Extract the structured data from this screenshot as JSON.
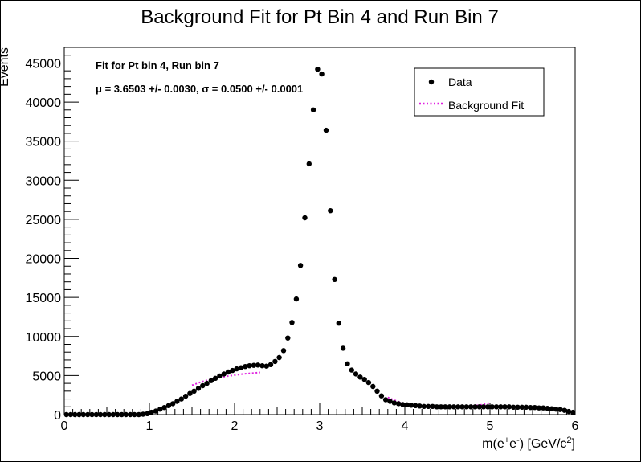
{
  "chart_data": {
    "type": "scatter",
    "title": "Background Fit for Pt Bin 4 and Run Bin 7",
    "xlabel_parts": [
      "m(e",
      "+",
      "e",
      "-",
      ") [GeV/c",
      "2",
      "]"
    ],
    "ylabel": "Events",
    "xlim": [
      0,
      6
    ],
    "ylim": [
      0,
      47000
    ],
    "xticks": [
      0,
      1,
      2,
      3,
      4,
      5,
      6
    ],
    "yticks": [
      0,
      5000,
      10000,
      15000,
      20000,
      25000,
      30000,
      35000,
      40000,
      45000
    ],
    "grid": false,
    "legend_position": "top-right",
    "annotations": [
      "Fit for Pt bin 4, Run bin 7",
      "μ = 3.6503 +/- 0.0030, σ = 0.0500 +/- 0.0001"
    ],
    "series": [
      {
        "name": "Data",
        "style": "markers",
        "color": "#000000",
        "x": [
          0.025,
          0.075,
          0.125,
          0.175,
          0.225,
          0.275,
          0.325,
          0.375,
          0.425,
          0.475,
          0.525,
          0.575,
          0.625,
          0.675,
          0.725,
          0.775,
          0.825,
          0.875,
          0.925,
          0.975,
          1.025,
          1.075,
          1.125,
          1.175,
          1.225,
          1.275,
          1.325,
          1.375,
          1.425,
          1.475,
          1.525,
          1.575,
          1.625,
          1.675,
          1.725,
          1.775,
          1.825,
          1.875,
          1.925,
          1.975,
          2.025,
          2.075,
          2.125,
          2.175,
          2.225,
          2.275,
          2.325,
          2.375,
          2.425,
          2.475,
          2.525,
          2.575,
          2.625,
          2.675,
          2.725,
          2.775,
          2.825,
          2.875,
          2.925,
          2.975,
          3.025,
          3.075,
          3.125,
          3.175,
          3.225,
          3.275,
          3.325,
          3.375,
          3.425,
          3.475,
          3.525,
          3.575,
          3.625,
          3.675,
          3.725,
          3.775,
          3.825,
          3.875,
          3.925,
          3.975,
          4.025,
          4.075,
          4.125,
          4.175,
          4.225,
          4.275,
          4.325,
          4.375,
          4.425,
          4.475,
          4.525,
          4.575,
          4.625,
          4.675,
          4.725,
          4.775,
          4.825,
          4.875,
          4.925,
          4.975,
          5.025,
          5.075,
          5.125,
          5.175,
          5.225,
          5.275,
          5.325,
          5.375,
          5.425,
          5.475,
          5.525,
          5.575,
          5.625,
          5.675,
          5.725,
          5.775,
          5.825,
          5.875,
          5.925,
          5.975
        ],
        "y": [
          0,
          0,
          0,
          0,
          0,
          0,
          0,
          0,
          0,
          0,
          0,
          0,
          0,
          0,
          0,
          0,
          0,
          0,
          50,
          120,
          300,
          450,
          700,
          900,
          1150,
          1400,
          1700,
          2000,
          2350,
          2700,
          3000,
          3350,
          3700,
          4000,
          4350,
          4650,
          4950,
          5200,
          5450,
          5650,
          5850,
          6000,
          6150,
          6250,
          6300,
          6350,
          6250,
          6200,
          6400,
          6800,
          7300,
          8200,
          9800,
          11800,
          14800,
          19100,
          25200,
          32100,
          39000,
          44200,
          43600,
          36400,
          26100,
          17300,
          11700,
          8500,
          6500,
          5700,
          5200,
          4800,
          4500,
          4100,
          3600,
          3000,
          2400,
          1900,
          1700,
          1500,
          1400,
          1300,
          1250,
          1200,
          1150,
          1100,
          1050,
          1050,
          1050,
          1000,
          1000,
          1000,
          1000,
          1000,
          1000,
          1000,
          1000,
          1000,
          1000,
          1000,
          1000,
          1000,
          1000,
          1000,
          1000,
          1000,
          1000,
          950,
          950,
          950,
          950,
          900,
          900,
          850,
          850,
          800,
          750,
          700,
          650,
          550,
          400,
          300
        ]
      },
      {
        "name": "Background Fit",
        "style": "dotted-line",
        "color": "#e020e0",
        "segments": [
          {
            "x": [
              1.5,
              1.6,
              1.7,
              1.8,
              1.9,
              2.0,
              2.1,
              2.2,
              2.3
            ],
            "y": [
              3750,
              4150,
              4450,
              4700,
              4900,
              5050,
              5200,
              5300,
              5400
            ]
          },
          {
            "x": [
              3.8,
              3.9,
              4.0,
              4.1,
              4.2,
              4.3,
              4.4,
              4.5,
              4.6,
              4.7,
              4.8,
              4.9,
              5.0
            ],
            "y": [
              2200,
              1750,
              1400,
              1150,
              1000,
              950,
              900,
              900,
              950,
              1000,
              1100,
              1250,
              1500
            ]
          }
        ]
      }
    ]
  }
}
